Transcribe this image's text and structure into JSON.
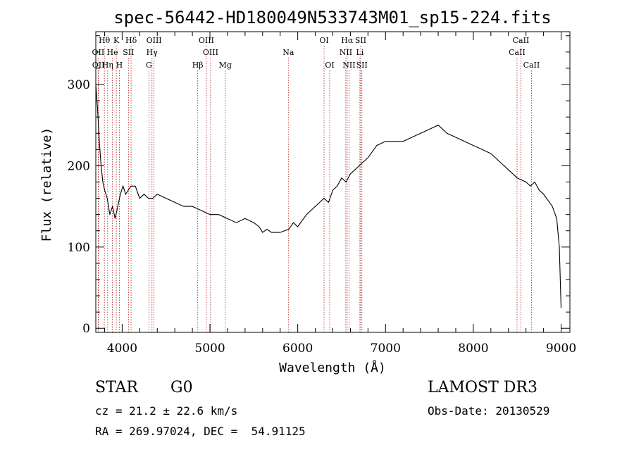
{
  "chart_data": {
    "type": "line",
    "title": "spec-56442-HD180049N533743M01_sp15-224.fits",
    "xlabel": "Wavelength (Å)",
    "ylabel": "Flux (relative)",
    "xlim": [
      3700,
      9100
    ],
    "ylim": [
      -5,
      365
    ],
    "x_ticks": [
      4000,
      5000,
      6000,
      7000,
      8000,
      9000
    ],
    "y_ticks": [
      0,
      100,
      200,
      300
    ],
    "grid": false,
    "series": [
      {
        "x": [
          3700,
          3720,
          3740,
          3760,
          3780,
          3800,
          3830,
          3860,
          3890,
          3920,
          3950,
          3980,
          4010,
          4040,
          4070,
          4100,
          4150,
          4200,
          4250,
          4300,
          4350,
          4400,
          4500,
          4600,
          4700,
          4800,
          4900,
          5000,
          5100,
          5200,
          5300,
          5400,
          5500,
          5560,
          5600,
          5650,
          5700,
          5800,
          5900,
          5950,
          6000,
          6100,
          6200,
          6300,
          6350,
          6400,
          6450,
          6500,
          6550,
          6600,
          6650,
          6700,
          6750,
          6800,
          6900,
          7000,
          7100,
          7200,
          7300,
          7400,
          7500,
          7600,
          7700,
          7800,
          7900,
          8000,
          8100,
          8200,
          8300,
          8400,
          8500,
          8600,
          8650,
          8700,
          8750,
          8800,
          8900,
          8950,
          8980,
          9000
        ],
        "y": [
          300,
          270,
          230,
          200,
          180,
          170,
          160,
          140,
          150,
          135,
          150,
          165,
          175,
          165,
          170,
          175,
          175,
          160,
          165,
          160,
          160,
          165,
          160,
          155,
          150,
          150,
          145,
          140,
          140,
          135,
          130,
          135,
          130,
          125,
          118,
          122,
          118,
          118,
          122,
          130,
          125,
          140,
          150,
          160,
          155,
          170,
          175,
          185,
          180,
          190,
          195,
          200,
          205,
          210,
          225,
          230,
          230,
          230,
          235,
          240,
          245,
          250,
          240,
          235,
          230,
          225,
          220,
          215,
          205,
          195,
          185,
          180,
          175,
          180,
          170,
          165,
          150,
          135,
          100,
          25
        ]
      }
    ],
    "line_annotations": [
      {
        "label": "Hθ",
        "x": 3798,
        "row": 1
      },
      {
        "label": "K",
        "x": 3934,
        "row": 1
      },
      {
        "label": "Hδ",
        "x": 4102,
        "row": 1
      },
      {
        "label": "OIII",
        "x": 4363,
        "row": 1
      },
      {
        "label": "OIII",
        "x": 4959,
        "row": 1
      },
      {
        "label": "OI",
        "x": 6300,
        "row": 1
      },
      {
        "label": "Hα",
        "x": 6563,
        "row": 1
      },
      {
        "label": "SII",
        "x": 6717,
        "row": 1
      },
      {
        "label": "CaII",
        "x": 8542,
        "row": 1
      },
      {
        "label": "OII",
        "x": 3727,
        "row": 2
      },
      {
        "label": "He",
        "x": 3889,
        "row": 2
      },
      {
        "label": "SII",
        "x": 4072,
        "row": 2
      },
      {
        "label": "Hγ",
        "x": 4340,
        "row": 2
      },
      {
        "label": "OIII",
        "x": 5007,
        "row": 2
      },
      {
        "label": "Na",
        "x": 5893,
        "row": 2
      },
      {
        "label": "NII",
        "x": 6548,
        "row": 2
      },
      {
        "label": "Li",
        "x": 6708,
        "row": 2
      },
      {
        "label": "CaII",
        "x": 8498,
        "row": 2
      },
      {
        "label": "OII",
        "x": 3729,
        "row": 3
      },
      {
        "label": "Hη",
        "x": 3835,
        "row": 3
      },
      {
        "label": "H",
        "x": 3968,
        "row": 3
      },
      {
        "label": "G",
        "x": 4305,
        "row": 3
      },
      {
        "label": "Hβ",
        "x": 4861,
        "row": 3
      },
      {
        "label": "Mg",
        "x": 5175,
        "row": 3
      },
      {
        "label": "OI",
        "x": 6364,
        "row": 3
      },
      {
        "label": "NII",
        "x": 6584,
        "row": 3
      },
      {
        "label": "SII",
        "x": 6731,
        "row": 3
      },
      {
        "label": "CaII",
        "x": 8662,
        "row": 3
      }
    ]
  },
  "info": {
    "class_label": "STAR",
    "subclass": "G0",
    "survey": "LAMOST DR3",
    "cz": "cz = 21.2 ± 22.6 km/s",
    "obs_date": "Obs-Date: 20130529",
    "radec": "RA = 269.97024, DEC =  54.91125"
  }
}
